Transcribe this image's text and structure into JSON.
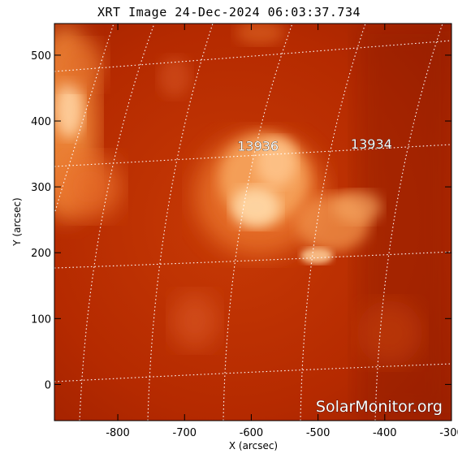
{
  "title": "XRT Image 24-Dec-2024 06:03:37.734",
  "x_axis": {
    "label": "X (arcsec)",
    "ticks": [
      "-800",
      "-700",
      "-600",
      "-500",
      "-400",
      "-300"
    ],
    "tick_values": [
      -800,
      -700,
      -600,
      -500,
      -400,
      -300
    ],
    "range": [
      -895,
      -300
    ]
  },
  "y_axis": {
    "label": "Y (arcsec)",
    "ticks": [
      "0",
      "100",
      "200",
      "300",
      "400",
      "500"
    ],
    "tick_values": [
      0,
      100,
      200,
      300,
      400,
      500
    ],
    "range": [
      -55,
      548
    ]
  },
  "regions": [
    {
      "label": "13936",
      "x": -590,
      "y": 355
    },
    {
      "label": "13934",
      "x": -420,
      "y": 358
    }
  ],
  "watermark": "SolarMonitor.org",
  "colors": {
    "background": "#b82a00",
    "bright": "#ffd9a8",
    "grid": "#ffffff"
  }
}
